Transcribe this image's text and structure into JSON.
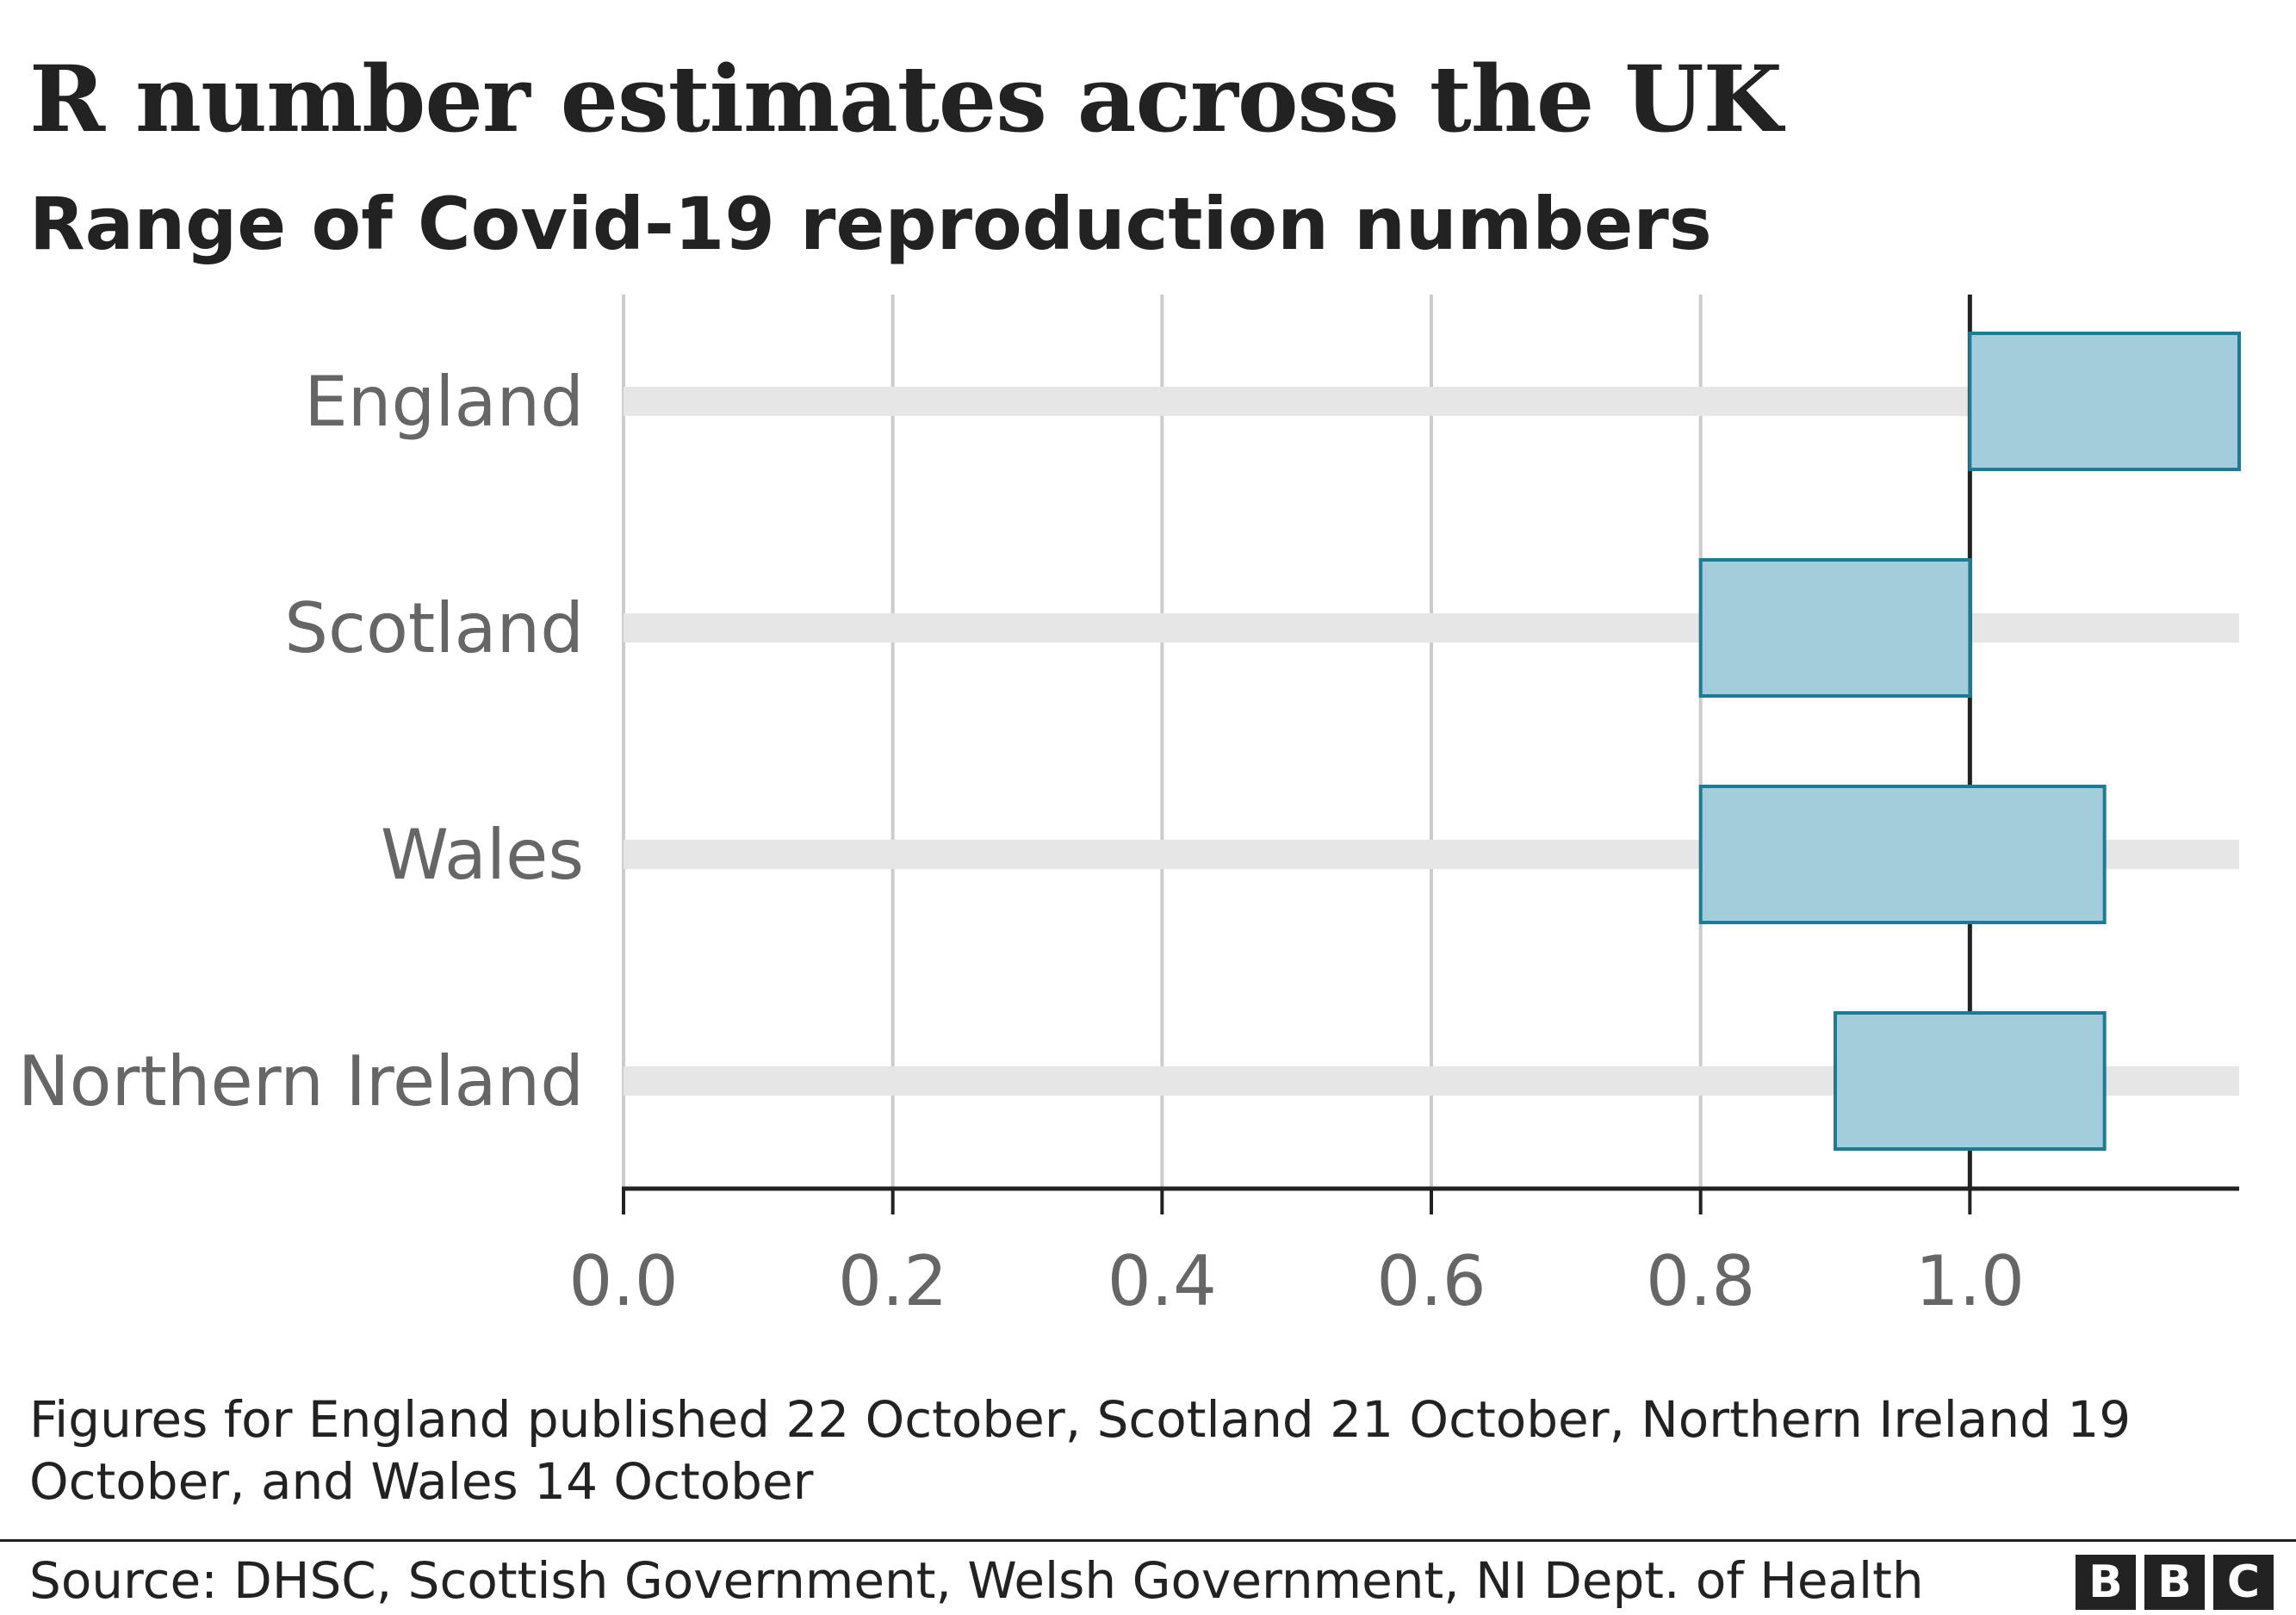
{
  "chart_data": {
    "type": "bar",
    "subtype": "floating-range",
    "title": "R number estimates across the UK",
    "subtitle": "Range of Covid-19 reproduction numbers",
    "categories": [
      "England",
      "Scotland",
      "Wales",
      "Northern Ireland"
    ],
    "ranges": [
      {
        "name": "England",
        "low": 1.0,
        "high": 1.2
      },
      {
        "name": "Scotland",
        "low": 0.8,
        "high": 1.0
      },
      {
        "name": "Wales",
        "low": 0.8,
        "high": 1.1
      },
      {
        "name": "Northern Ireland",
        "low": 0.9,
        "high": 1.1
      }
    ],
    "xlim": [
      0,
      1.2
    ],
    "xticks": [
      0,
      0.2,
      0.4,
      0.6,
      0.8,
      1.0
    ],
    "xtick_labels": [
      "0.0",
      "0.2",
      "0.4",
      "0.6",
      "0.8",
      "1.0"
    ],
    "reference_line": 1.0,
    "grid": true,
    "xlabel": "",
    "ylabel": "",
    "colors": {
      "bar_fill": "#a3cdda",
      "bar_stroke": "#1d7c95",
      "track": "#e6e6e6",
      "grid": "#cccccc",
      "axis": "#222222",
      "category_label": "#666666"
    }
  },
  "note": "Figures for England published 22 October, Scotland 21 October, Northern Ireland 19 October, and Wales 14 October",
  "source": "Source: DHSC, Scottish Government, Welsh Government, NI Dept. of Health",
  "logo": {
    "letters": [
      "B",
      "B",
      "C"
    ]
  }
}
